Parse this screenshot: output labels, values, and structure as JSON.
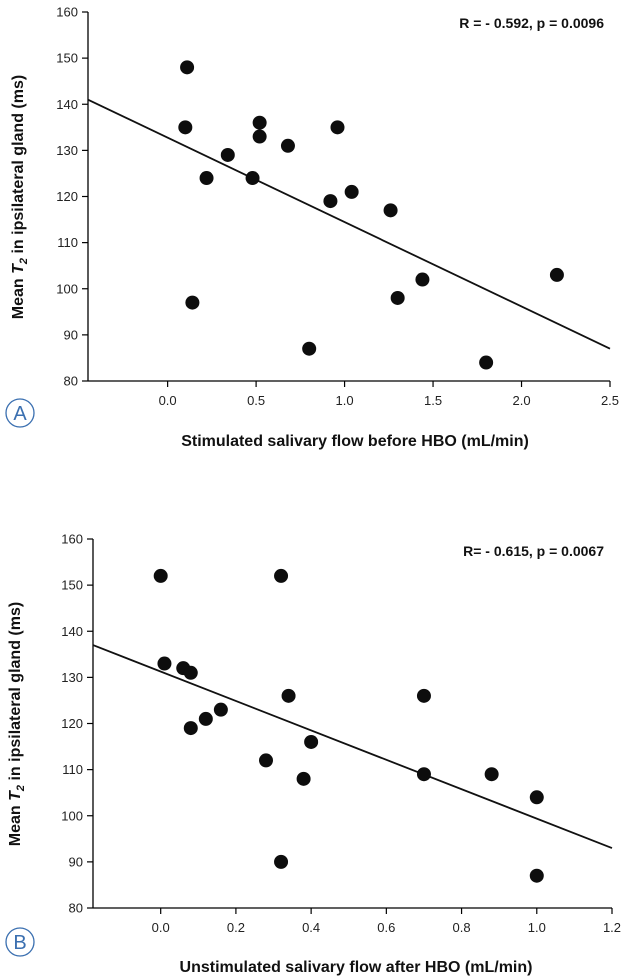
{
  "chart_data": [
    {
      "type": "scatter",
      "panel_label": "A",
      "stat_annotation": "R = - 0.592, p = 0.0096",
      "xlabel": "Stimulated salivary flow before HBO (mL/min)",
      "ylabel_prefix": "Mean ",
      "ylabel_var": "T",
      "ylabel_sub": "2",
      "ylabel_suffix": " in ipsilateral gland (ms)",
      "xlim": [
        -0.45,
        2.5
      ],
      "ylim": [
        80,
        160
      ],
      "x_ticks": [
        0.0,
        0.5,
        1.0,
        1.5,
        2.0,
        2.5
      ],
      "x_tick_labels": [
        "0.0",
        "0.5",
        "1.0",
        "1.5",
        "2.0",
        "2.5"
      ],
      "y_ticks": [
        80,
        90,
        100,
        110,
        120,
        130,
        140,
        150,
        160
      ],
      "y_tick_labels": [
        "80",
        "90",
        "100",
        "110",
        "120",
        "130",
        "140",
        "150",
        "160"
      ],
      "points": [
        [
          0.11,
          148
        ],
        [
          0.1,
          135
        ],
        [
          0.14,
          97
        ],
        [
          0.22,
          124
        ],
        [
          0.34,
          129
        ],
        [
          0.48,
          124
        ],
        [
          0.52,
          136
        ],
        [
          0.52,
          133
        ],
        [
          0.68,
          131
        ],
        [
          0.8,
          87
        ],
        [
          0.92,
          119
        ],
        [
          0.96,
          135
        ],
        [
          1.04,
          121
        ],
        [
          1.26,
          117
        ],
        [
          1.3,
          98
        ],
        [
          1.44,
          102
        ],
        [
          1.8,
          84
        ],
        [
          2.2,
          103
        ]
      ],
      "fit_line": [
        [
          -0.45,
          141
        ],
        [
          2.5,
          87
        ]
      ]
    },
    {
      "type": "scatter",
      "panel_label": "B",
      "stat_annotation": "R= - 0.615, p = 0.0067",
      "xlabel": "Unstimulated salivary flow after HBO (mL/min)",
      "ylabel_prefix": "Mean ",
      "ylabel_var": "T",
      "ylabel_sub": "2",
      "ylabel_suffix": " in ipsilateral gland (ms)",
      "xlim": [
        -0.18,
        1.2
      ],
      "ylim": [
        80,
        160
      ],
      "x_ticks": [
        0.0,
        0.2,
        0.4,
        0.6,
        0.8,
        1.0,
        1.2
      ],
      "x_tick_labels": [
        "0.0",
        "0.2",
        "0.4",
        "0.6",
        "0.8",
        "1.0",
        "1.2"
      ],
      "y_ticks": [
        80,
        90,
        100,
        110,
        120,
        130,
        140,
        150,
        160
      ],
      "y_tick_labels": [
        "80",
        "90",
        "100",
        "110",
        "120",
        "130",
        "140",
        "150",
        "160"
      ],
      "points": [
        [
          0.0,
          152
        ],
        [
          0.01,
          133
        ],
        [
          0.06,
          132
        ],
        [
          0.08,
          131
        ],
        [
          0.08,
          119
        ],
        [
          0.12,
          121
        ],
        [
          0.16,
          123
        ],
        [
          0.28,
          112
        ],
        [
          0.32,
          152
        ],
        [
          0.32,
          90
        ],
        [
          0.34,
          126
        ],
        [
          0.38,
          108
        ],
        [
          0.4,
          116
        ],
        [
          0.7,
          126
        ],
        [
          0.7,
          109
        ],
        [
          0.88,
          109
        ],
        [
          1.0,
          104
        ],
        [
          1.0,
          87
        ]
      ],
      "fit_line": [
        [
          -0.18,
          137
        ],
        [
          1.2,
          93
        ]
      ]
    }
  ]
}
